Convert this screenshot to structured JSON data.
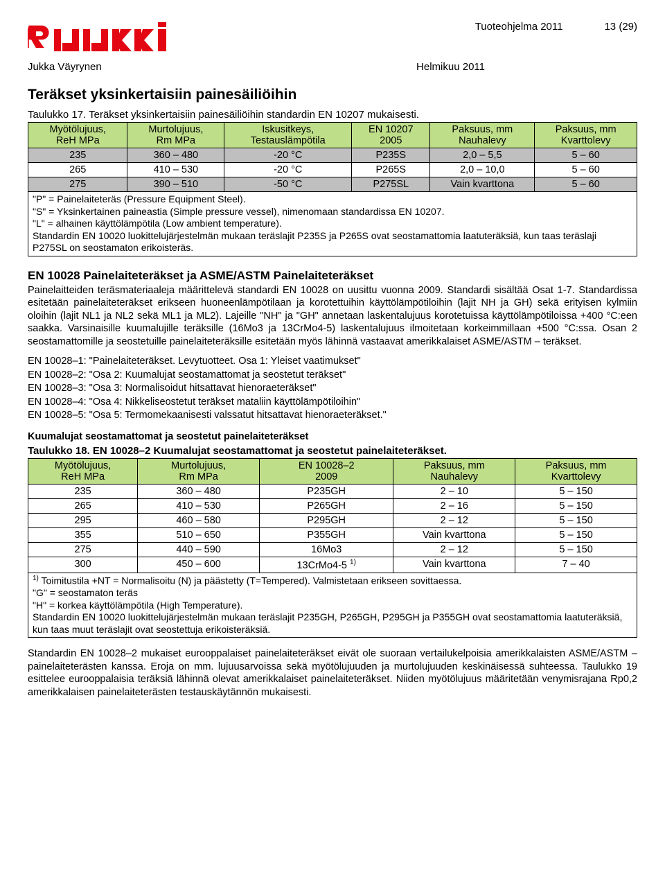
{
  "header": {
    "program": "Tuoteohjelma 2011",
    "page": "13 (29)",
    "author": "Jukka Väyrynen",
    "month": "Helmikuu 2011"
  },
  "logo": {
    "color": "#e30613",
    "text": "ruukki"
  },
  "section1": {
    "title": "Teräkset yksinkertaisiin painesäiliöihin",
    "caption": "Taulukko 17. Teräkset yksinkertaisiin painesäiliöihin standardin EN 10207 mukaisesti."
  },
  "table1": {
    "colors": {
      "header_bg": "#bfde8a",
      "grey_bg": "#bfbfbf"
    },
    "head": {
      "c1a": "Myötölujuus,",
      "c1b": "ReH MPa",
      "c2a": "Murtolujuus,",
      "c2b": "Rm MPa",
      "c3a": "Iskusitkeys,",
      "c3b": "Testauslämpötila",
      "c4a": "EN 10207",
      "c4b": "2005",
      "c5a": "Paksuus, mm",
      "c5b": "Nauhalevy",
      "c6a": "Paksuus, mm",
      "c6b": "Kvarttolevy"
    },
    "rows": [
      {
        "c1": "235",
        "c2": "360 – 480",
        "c3": "-20 °C",
        "c4": "P235S",
        "c5": "2,0 – 5,5",
        "c6": "5 – 60",
        "grey": true
      },
      {
        "c1": "265",
        "c2": "410 – 530",
        "c3": "-20 °C",
        "c4": "P265S",
        "c5": "2,0 – 10,0",
        "c6": "5 – 60",
        "grey": false
      },
      {
        "c1": "275",
        "c2": "390 – 510",
        "c3": "-50 °C",
        "c4": "P275SL",
        "c5": "Vain kvarttona",
        "c6": "5 – 60",
        "grey": true
      }
    ],
    "notes": [
      "\"P\" = Painelaiteteräs (Pressure Equipment Steel).",
      "\"S\" = Yksinkertainen paineastia (Simple pressure vessel), nimenomaan standardissa EN 10207.",
      "\"L\" = alhainen käyttölämpötila (Low ambient temperature).",
      "Standardin EN 10020 luokittelujärjestelmän mukaan teräslajit P235S ja P265S ovat seostamattomia laatuteräksiä, kun taas teräslaji P275SL on seostamaton erikoisteräs."
    ]
  },
  "section2": {
    "title": "EN 10028 Painelaiteteräkset ja ASME/ASTM Painelaiteteräkset",
    "para": "Painelaitteiden teräsmateriaaleja määrittelevä standardi EN 10028 on uusittu vuonna 2009. Standardi sisältää Osat 1-7. Standardissa esitetään painelaiteteräkset erikseen huoneenlämpötilaan ja korotettuihin käyttölämpötiloihin (lajit NH ja GH) sekä erityisen kylmiin oloihin (lajit NL1 ja NL2 sekä ML1 ja ML2). Lajeille \"NH\" ja \"GH\" annetaan laskentalujuus korotetuissa käyttölämpötiloissa +400 °C:een saakka. Varsinaisille kuumalujille teräksille (16Mo3 ja 13CrMo4-5) laskentalujuus ilmoitetaan korkeimmillaan +500 °C:ssa. Osan 2 seostamattomille ja seostetuille painelaiteteräksille esitetään myös lähinnä vastaavat amerikkalaiset ASME/ASTM – teräkset."
  },
  "standards": [
    "EN 10028–1: \"Painelaiteteräkset. Levytuotteet. Osa 1: Yleiset vaatimukset\"",
    "EN 10028–2: \"Osa 2: Kuumalujat seostamattomat ja seostetut teräkset\"",
    "EN 10028–3: \"Osa 3: Normalisoidut hitsattavat hienoraeteräkset\"",
    "EN 10028–4: \"Osa 4: Nikkeliseostetut teräkset mataliin käyttölämpötiloihin\"",
    "EN 10028–5: \"Osa 5: Termomekaanisesti valssatut hitsattavat hienoraeteräkset.\""
  ],
  "section3": {
    "subtitle": "Kuumalujat seostamattomat ja seostetut painelaiteteräkset",
    "caption": "Taulukko 18. EN 10028–2 Kuumalujat seostamattomat ja seostetut painelaiteteräkset."
  },
  "table2": {
    "head": {
      "c1a": "Myötölujuus,",
      "c1b": "ReH MPa",
      "c2a": "Murtolujuus,",
      "c2b": "Rm MPa",
      "c3a": "EN 10028–2",
      "c3b": "2009",
      "c4a": "Paksuus, mm",
      "c4b": "Nauhalevy",
      "c5a": "Paksuus, mm",
      "c5b": "Kvarttolevy"
    },
    "rows": [
      {
        "c1": "235",
        "c2": "360 – 480",
        "c3": "P235GH",
        "c4": "2 – 10",
        "c5": "5 – 150"
      },
      {
        "c1": "265",
        "c2": "410 – 530",
        "c3": "P265GH",
        "c4": "2 – 16",
        "c5": "5 – 150"
      },
      {
        "c1": "295",
        "c2": "460 – 580",
        "c3": "P295GH",
        "c4": "2 – 12",
        "c5": "5 – 150"
      },
      {
        "c1": "355",
        "c2": "510 – 650",
        "c3": "P355GH",
        "c4": "Vain kvarttona",
        "c5": "5 – 150"
      },
      {
        "c1": "275",
        "c2": "440 – 590",
        "c3": "16Mo3",
        "c4": "2 – 12",
        "c5": "5 – 150"
      },
      {
        "c1": "300",
        "c2": "450 – 600",
        "c3": "13CrMo4-5 ",
        "sup": "1)",
        "c4": "Vain kvarttona",
        "c5": "7 – 40"
      }
    ],
    "notes": [
      "Toimitustila +NT = Normalisoitu (N) ja päästetty (T=Tempered). Valmistetaan erikseen sovittaessa.",
      "\"G\" = seostamaton teräs",
      "\"H\" = korkea käyttölämpötila (High Temperature).",
      "Standardin EN 10020 luokittelujärjestelmän mukaan teräslajit P235GH, P265GH, P295GH ja P355GH ovat seostamattomia laatuteräksiä, kun taas muut teräslajit ovat seostettuja erikoisteräksiä."
    ],
    "note_sup": "1)"
  },
  "trailing_para": "Standardin EN 10028–2 mukaiset eurooppalaiset painelaiteteräkset eivät ole suoraan vertailukelpoisia amerikkalaisten ASME/ASTM –painelaiteterästen kanssa. Eroja on mm. lujuusarvoissa sekä myötölujuuden ja murtolujuuden keskinäisessä suhteessa. Taulukko 19 esittelee eurooppalaisia teräksiä lähinnä olevat amerikkalaiset painelaiteteräkset. Niiden myötölujuus määritetään venymisrajana Rp0,2 amerikkalaisen painelaiteterästen testauskäytännön mukaisesti."
}
